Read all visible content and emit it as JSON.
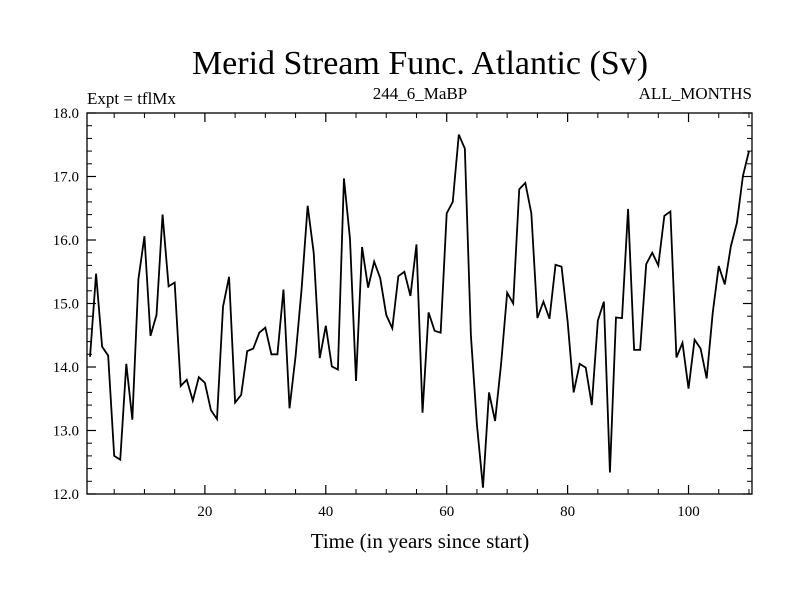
{
  "chart_data": {
    "type": "line",
    "title": "Merid Stream Func. Atlantic (Sv)",
    "subtitle_left": "Expt = tflMx",
    "subtitle_center": "244_6_MaBP",
    "subtitle_right": "ALL_MONTHS",
    "xlabel": "Time (in years since start)",
    "ylabel": "",
    "xlim": [
      0.5,
      110.5
    ],
    "ylim": [
      12.0,
      18.0
    ],
    "xticks": [
      20,
      40,
      60,
      80,
      100
    ],
    "xtick_labels": [
      "20",
      "40",
      "60",
      "80",
      "100"
    ],
    "yticks": [
      12.0,
      13.0,
      14.0,
      15.0,
      16.0,
      17.0,
      18.0
    ],
    "ytick_labels": [
      "12.0",
      "13.0",
      "14.0",
      "15.0",
      "16.0",
      "17.0",
      "18.0"
    ],
    "line_color": "#000000",
    "series": [
      {
        "name": "Merid Stream Func. Atlantic",
        "x_start": 1,
        "x_step": 1,
        "values": [
          14.16,
          15.47,
          14.32,
          14.18,
          12.6,
          12.54,
          14.05,
          13.17,
          15.38,
          16.06,
          14.49,
          14.82,
          16.4,
          15.27,
          15.33,
          13.7,
          13.8,
          13.47,
          13.84,
          13.75,
          13.32,
          13.18,
          14.95,
          15.42,
          13.44,
          13.56,
          14.25,
          14.29,
          14.54,
          14.62,
          14.2,
          14.2,
          15.22,
          13.35,
          14.17,
          15.23,
          16.54,
          15.8,
          14.14,
          14.65,
          14.01,
          13.96,
          16.97,
          16.02,
          13.78,
          15.89,
          15.25,
          15.66,
          15.4,
          14.82,
          14.61,
          15.43,
          15.5,
          15.12,
          15.93,
          13.28,
          14.86,
          14.57,
          14.54,
          16.42,
          16.6,
          17.66,
          17.44,
          14.5,
          13.09,
          12.1,
          13.6,
          13.15,
          14.05,
          15.17,
          15.0,
          16.8,
          16.9,
          16.42,
          14.77,
          15.03,
          14.76,
          15.61,
          15.58,
          14.72,
          13.6,
          14.05,
          13.99,
          13.4,
          14.73,
          15.03,
          12.34,
          14.78,
          14.77,
          16.49,
          14.27,
          14.27,
          15.62,
          15.8,
          15.6,
          16.38,
          16.45,
          14.15,
          14.38,
          13.66,
          14.43,
          14.29,
          13.82,
          14.85,
          15.59,
          15.3,
          15.9,
          16.27,
          17.01,
          17.4
        ]
      }
    ]
  }
}
